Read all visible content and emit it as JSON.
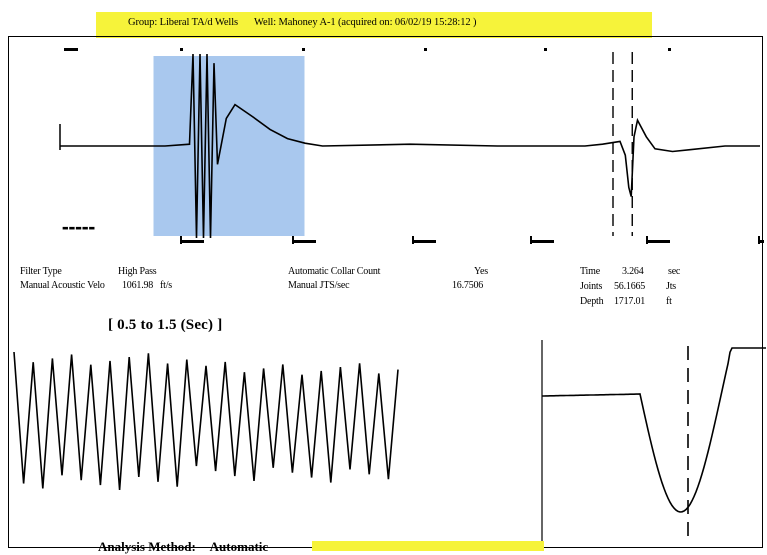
{
  "header": {
    "group": "Group: Liberal TA/d Wells",
    "well": "Well: Mahoney A-1 (acquired on: 06/02/19 15:28:12 )"
  },
  "highlight_color": "#f6f33a",
  "selection_color": "#a9c8ee",
  "info": {
    "filter_type_label": "Filter Type",
    "filter_type_value": "High Pass",
    "manual_velocity_label": "Manual Acoustic Velo",
    "manual_velocity_value": "1061.98",
    "manual_velocity_unit": "ft/s",
    "collar_count_label": "Automatic Collar Count",
    "collar_count_value": "Yes",
    "manual_jts_label": "Manual JTS/sec",
    "manual_jts_value": "16.7506",
    "time_label": "Time",
    "time_value": "3.264",
    "time_unit": "sec",
    "joints_label": "Joints",
    "joints_value": "56.1665",
    "joints_unit": "Jts",
    "depth_label": "Depth",
    "depth_value": "1717.01",
    "depth_unit": "ft"
  },
  "range_label": "[ 0.5  to  1.5 (Sec) ]",
  "analysis": {
    "label": "Analysis Method:",
    "value": "Automatic"
  },
  "chart_data": [
    {
      "type": "line",
      "name": "acoustic-trace",
      "x_unit": "sec",
      "x": [
        0.0,
        0.6,
        0.74,
        0.76,
        0.78,
        0.8,
        0.82,
        0.84,
        0.86,
        0.88,
        0.9,
        0.95,
        1.0,
        1.1,
        1.2,
        1.3,
        1.4,
        1.5,
        2.0,
        2.5,
        3.0,
        3.1,
        3.2,
        3.23,
        3.25,
        3.264,
        3.28,
        3.3,
        3.35,
        3.4,
        3.5,
        3.6,
        3.8,
        4.0
      ],
      "y": [
        0.0,
        0.0,
        0.02,
        1.0,
        -1.0,
        1.0,
        -1.0,
        1.0,
        -1.0,
        0.9,
        -0.2,
        0.3,
        0.45,
        0.32,
        0.18,
        0.08,
        0.03,
        0.0,
        0.02,
        0.0,
        0.0,
        0.02,
        0.05,
        -0.1,
        -0.45,
        -0.55,
        0.1,
        0.28,
        0.1,
        -0.03,
        -0.06,
        -0.04,
        0.0,
        0.0
      ],
      "selection_range": [
        0.5,
        1.5
      ],
      "markers": [
        3.16,
        3.27
      ]
    },
    {
      "type": "line",
      "name": "zoomed-trace",
      "x_range": [
        0.5,
        1.5
      ],
      "cycles": 20
    },
    {
      "type": "line",
      "name": "collar-detail",
      "marker": 3.264
    }
  ]
}
